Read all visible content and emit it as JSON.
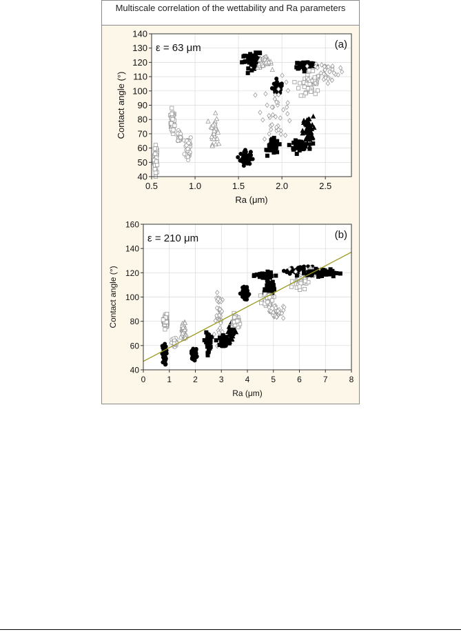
{
  "figure": {
    "title": "Multiscale correlation of the wettability and Ra parameters"
  },
  "colors": {
    "panel_bg": "#fdf7ea",
    "fit_line": "#9a9a1f",
    "filled": "#000000",
    "open": "#9a9a9a"
  },
  "chart_data": [
    {
      "type": "scatter",
      "panel_label": "(a)",
      "annotation": "ε = 63 μm",
      "xlabel": "Ra (μm)",
      "ylabel": "Contact angle (°)",
      "xlim": [
        0.5,
        2.8
      ],
      "ylim": [
        40,
        140
      ],
      "xticks": [
        0.5,
        1.0,
        1.5,
        2.0,
        2.5
      ],
      "xtick_labels": [
        "0.5",
        "1.0",
        "1.5",
        "2.0",
        "2.5"
      ],
      "yticks": [
        40,
        50,
        60,
        70,
        80,
        90,
        100,
        110,
        120,
        130,
        140
      ],
      "ytick_labels": [
        "40",
        "50",
        "60",
        "70",
        "80",
        "90",
        "100",
        "110",
        "120",
        "130",
        "140"
      ],
      "grid": true,
      "clusters": [
        {
          "x": 0.55,
          "y": 52,
          "sx": 0.01,
          "sy": 5,
          "marker": "open-square"
        },
        {
          "x": 0.74,
          "y": 78,
          "sx": 0.012,
          "sy": 4,
          "marker": "open-square"
        },
        {
          "x": 0.82,
          "y": 68,
          "sx": 0.01,
          "sy": 2,
          "marker": "open-circle"
        },
        {
          "x": 0.92,
          "y": 60,
          "sx": 0.02,
          "sy": 5,
          "marker": "open-circle"
        },
        {
          "x": 1.22,
          "y": 73,
          "sx": 0.02,
          "sy": 5,
          "marker": "open-triangle"
        },
        {
          "x": 1.58,
          "y": 53,
          "sx": 0.03,
          "sy": 2.5,
          "marker": "filled-circle"
        },
        {
          "x": 1.68,
          "y": 121,
          "sx": 0.07,
          "sy": 2.5,
          "marker": "filled-square"
        },
        {
          "x": 1.8,
          "y": 120,
          "sx": 0.04,
          "sy": 2,
          "marker": "open-triangle"
        },
        {
          "x": 1.95,
          "y": 102,
          "sx": 0.03,
          "sy": 2,
          "marker": "filled-circle"
        },
        {
          "x": 1.9,
          "y": 61,
          "sx": 0.03,
          "sy": 2.5,
          "marker": "filled-square"
        },
        {
          "x": 1.95,
          "y": 87,
          "sx": 0.09,
          "sy": 10,
          "marker": "open-diamond"
        },
        {
          "x": 2.2,
          "y": 62,
          "sx": 0.05,
          "sy": 1.5,
          "marker": "filled-square"
        },
        {
          "x": 2.3,
          "y": 72,
          "sx": 0.03,
          "sy": 5,
          "marker": "filled-triangle"
        },
        {
          "x": 2.27,
          "y": 118,
          "sx": 0.06,
          "sy": 1.5,
          "marker": "filled-square"
        },
        {
          "x": 2.32,
          "y": 105,
          "sx": 0.06,
          "sy": 5,
          "marker": "open-square"
        },
        {
          "x": 2.5,
          "y": 113,
          "sx": 0.08,
          "sy": 4,
          "marker": "open-diamond"
        }
      ]
    },
    {
      "type": "scatter",
      "panel_label": "(b)",
      "annotation": "ε = 210 μm",
      "xlabel": "Ra (μm)",
      "ylabel": "Contact angle (°)",
      "xlim": [
        0,
        8
      ],
      "ylim": [
        40,
        160
      ],
      "xticks": [
        0,
        1,
        2,
        3,
        4,
        5,
        6,
        7,
        8
      ],
      "xtick_labels": [
        "0",
        "1",
        "2",
        "3",
        "4",
        "5",
        "6",
        "7",
        "8"
      ],
      "yticks": [
        40,
        60,
        80,
        100,
        120,
        140,
        160
      ],
      "ytick_labels": [
        "40",
        "60",
        "80",
        "100",
        "120",
        "140",
        "160"
      ],
      "grid": true,
      "fit_line": {
        "x": [
          0,
          8
        ],
        "y": [
          47,
          137
        ]
      },
      "clusters": [
        {
          "x": 0.8,
          "y": 52,
          "sx": 0.04,
          "sy": 4,
          "marker": "filled-circle"
        },
        {
          "x": 0.85,
          "y": 80,
          "sx": 0.04,
          "sy": 3,
          "marker": "open-square"
        },
        {
          "x": 1.2,
          "y": 62,
          "sx": 0.05,
          "sy": 2,
          "marker": "open-circle"
        },
        {
          "x": 1.55,
          "y": 72,
          "sx": 0.05,
          "sy": 4,
          "marker": "open-triangle"
        },
        {
          "x": 1.95,
          "y": 53,
          "sx": 0.05,
          "sy": 2,
          "marker": "filled-circle"
        },
        {
          "x": 2.5,
          "y": 63,
          "sx": 0.05,
          "sy": 3.5,
          "marker": "filled-square"
        },
        {
          "x": 2.95,
          "y": 85,
          "sx": 0.08,
          "sy": 9,
          "marker": "open-diamond"
        },
        {
          "x": 3.1,
          "y": 64,
          "sx": 0.08,
          "sy": 2,
          "marker": "filled-square"
        },
        {
          "x": 3.4,
          "y": 72,
          "sx": 0.06,
          "sy": 3,
          "marker": "filled-triangle"
        },
        {
          "x": 3.55,
          "y": 80,
          "sx": 0.06,
          "sy": 3,
          "marker": "open-square"
        },
        {
          "x": 3.9,
          "y": 103,
          "sx": 0.07,
          "sy": 2,
          "marker": "filled-circle"
        },
        {
          "x": 4.65,
          "y": 118,
          "sx": 0.15,
          "sy": 1,
          "marker": "filled-square"
        },
        {
          "x": 4.85,
          "y": 107,
          "sx": 0.08,
          "sy": 3.5,
          "marker": "filled-square"
        },
        {
          "x": 4.8,
          "y": 98,
          "sx": 0.1,
          "sy": 2.5,
          "marker": "open-square"
        },
        {
          "x": 5.1,
          "y": 88,
          "sx": 0.15,
          "sy": 3,
          "marker": "open-diamond"
        },
        {
          "x": 6.0,
          "y": 113,
          "sx": 0.12,
          "sy": 3,
          "marker": "open-square"
        },
        {
          "x": 6.0,
          "y": 122,
          "sx": 0.25,
          "sy": 1.5,
          "marker": "filled-circle"
        },
        {
          "x": 6.4,
          "y": 120,
          "sx": 0.3,
          "sy": 2,
          "marker": "open-diamond"
        },
        {
          "x": 6.9,
          "y": 120,
          "sx": 0.3,
          "sy": 1.5,
          "marker": "filled-square"
        }
      ]
    }
  ]
}
